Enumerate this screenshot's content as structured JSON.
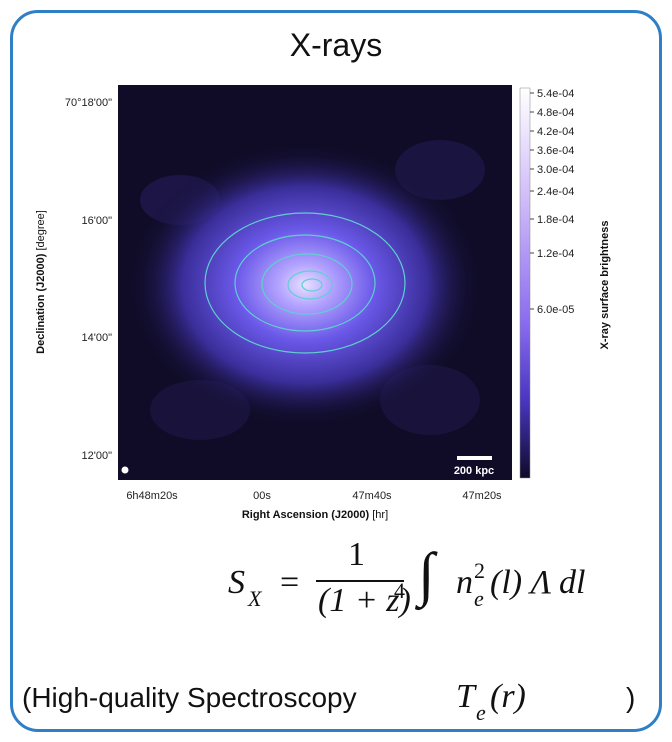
{
  "title": "X-rays",
  "map": {
    "y_ticks": [
      "70°18'00\"",
      "16'00\"",
      "14'00\"",
      "12'00\""
    ],
    "x_ticks": [
      "6h48m20s",
      "00s",
      "47m40s",
      "47m20s"
    ],
    "y_label": {
      "bold": "Declination (J2000)",
      "unit": "[degree]"
    },
    "x_label": {
      "bold": "Right Ascension (J2000)",
      "unit": "[hr]"
    },
    "scale_bar": "200 kpc",
    "colorbar": {
      "label": "X-ray surface brightness",
      "ticks": [
        "5.4e-04",
        "4.8e-04",
        "4.2e-04",
        "3.6e-04",
        "3.0e-04",
        "2.4e-04",
        "1.8e-04",
        "1.2e-04",
        "6.0e-05"
      ]
    }
  },
  "formula": {
    "lhs": "S",
    "lhs_sub": "X",
    "eq": "=",
    "num": "1",
    "den": "(1 + z)",
    "den_exp": "4",
    "integral": "∫",
    "n": "n",
    "n_sub": "e",
    "n_sup": "2",
    "rest": "(l) Λ dl"
  },
  "note": {
    "text": "(High-quality Spectroscopy",
    "symbol": "T",
    "symbol_sub": "e",
    "symbol_arg": "(r)",
    "close": ")"
  }
}
